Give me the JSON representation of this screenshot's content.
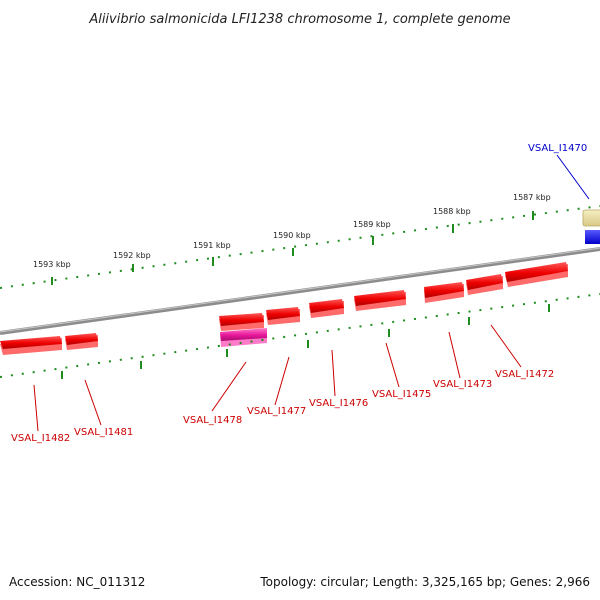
{
  "title": "Aliivibrio salmonicida LFI1238 chromosome 1, complete genome",
  "footer": {
    "accession": "Accession: NC_011312",
    "summary": "Topology: circular; Length: 3,325,165 bp; Genes: 2,966"
  },
  "colors": {
    "forward_gene": "#ee0000",
    "reverse_gene": "#ee0000",
    "highlight_gene": "#e8179a",
    "other_gene": "#1010e0",
    "pale_gene": "#e8dc9a",
    "backbone": "#8c8c8c",
    "tick": "#1e8c1e",
    "gene_label": "#cc0000",
    "highlight_label": "#0000cc",
    "pointer_line": "#cc0000"
  },
  "ticks": [
    {
      "label": "1593 kbp"
    },
    {
      "label": "1592 kbp"
    },
    {
      "label": "1591 kbp"
    },
    {
      "label": "1590 kbp"
    },
    {
      "label": "1589 kbp"
    },
    {
      "label": "1588 kbp"
    },
    {
      "label": "1587 kbp"
    }
  ],
  "genes": [
    {
      "id": "VSAL_I1482",
      "label": "VSAL_I1482"
    },
    {
      "id": "VSAL_I1481",
      "label": "VSAL_I1481"
    },
    {
      "id": "VSAL_I1478",
      "label": "VSAL_I1478"
    },
    {
      "id": "VSAL_I1477",
      "label": "VSAL_I1477"
    },
    {
      "id": "VSAL_I1476",
      "label": "VSAL_I1476"
    },
    {
      "id": "VSAL_I1475",
      "label": "VSAL_I1475"
    },
    {
      "id": "VSAL_I1473",
      "label": "VSAL_I1473"
    },
    {
      "id": "VSAL_I1472",
      "label": "VSAL_I1472"
    },
    {
      "id": "VSAL_I1470",
      "label": "VSAL_I1470"
    }
  ]
}
